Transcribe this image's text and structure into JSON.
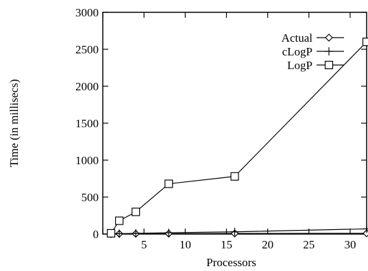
{
  "chart_data": {
    "type": "line",
    "title": "",
    "xlabel": "Processors",
    "ylabel": "Time (in millisecs)",
    "xlim": [
      0,
      32
    ],
    "ylim": [
      0,
      3000
    ],
    "xticks": [
      0,
      5,
      10,
      15,
      20,
      25,
      30
    ],
    "yticks": [
      0,
      500,
      1000,
      1500,
      2000,
      2500,
      3000
    ],
    "grid": false,
    "legend_position": "top-right",
    "series": [
      {
        "name": "Actual",
        "marker": "diamond",
        "color": "#000000",
        "x": [
          1,
          2,
          4,
          8,
          16,
          32
        ],
        "y": [
          2,
          3,
          4,
          6,
          8,
          10
        ]
      },
      {
        "name": "cLogP",
        "marker": "plus",
        "color": "#000000",
        "x": [
          1,
          2,
          4,
          8,
          16,
          32
        ],
        "y": [
          3,
          5,
          9,
          18,
          30,
          70
        ]
      },
      {
        "name": "LogP",
        "marker": "square",
        "color": "#000000",
        "x": [
          1,
          2,
          4,
          8,
          16,
          32
        ],
        "y": [
          10,
          180,
          300,
          680,
          780,
          2600
        ]
      }
    ]
  }
}
